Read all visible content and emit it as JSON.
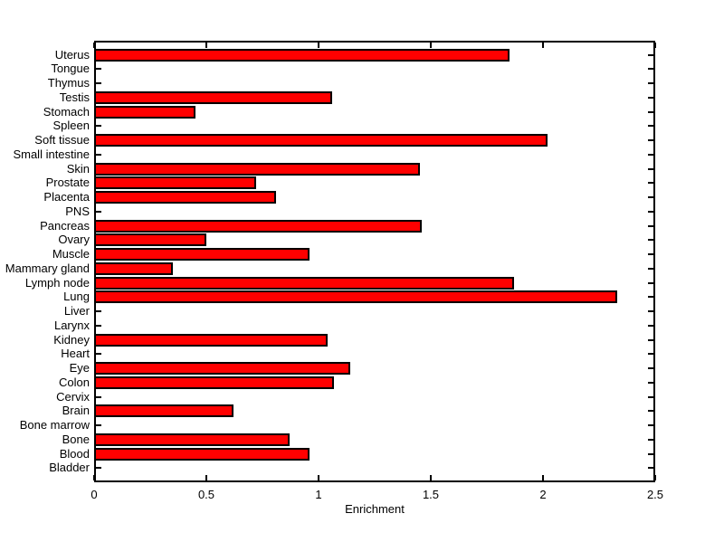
{
  "chart_data": {
    "type": "bar",
    "orientation": "horizontal",
    "title": "",
    "xlabel": "Enrichment",
    "ylabel": "",
    "xlim": [
      0,
      2.5
    ],
    "xticks": [
      0,
      0.5,
      1,
      1.5,
      2,
      2.5
    ],
    "xtick_labels": [
      "0",
      "0.5",
      "1",
      "1.5",
      "2",
      "2.5"
    ],
    "grid": false,
    "legend": null,
    "bar_color": "#ff0000",
    "bar_edge_color": "#000000",
    "background_color": "#ffffff",
    "text_color": "#000000",
    "categories": [
      "Uterus",
      "Tongue",
      "Thymus",
      "Testis",
      "Stomach",
      "Spleen",
      "Soft tissue",
      "Small intestine",
      "Skin",
      "Prostate",
      "Placenta",
      "PNS",
      "Pancreas",
      "Ovary",
      "Muscle",
      "Mammary gland",
      "Lymph node",
      "Lung",
      "Liver",
      "Larynx",
      "Kidney",
      "Heart",
      "Eye",
      "Colon",
      "Cervix",
      "Brain",
      "Bone marrow",
      "Bone",
      "Blood",
      "Bladder"
    ],
    "values": [
      1.85,
      0,
      0,
      1.06,
      0.45,
      0,
      2.02,
      0,
      1.45,
      0.72,
      0.81,
      0,
      1.46,
      0.5,
      0.96,
      0.35,
      1.87,
      2.33,
      0,
      0,
      1.04,
      0,
      1.14,
      1.07,
      0,
      0.62,
      0,
      0.87,
      0.96,
      0
    ]
  }
}
